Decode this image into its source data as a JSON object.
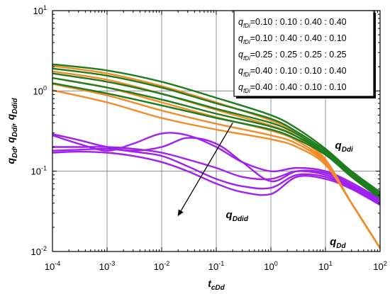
{
  "chart_data": {
    "type": "line",
    "title": "",
    "x_scale": "log",
    "y_scale": "log",
    "xlim": [
      0.0001,
      100
    ],
    "ylim": [
      0.01,
      10
    ],
    "grid": true,
    "xlabel": {
      "base": "t",
      "sub": "cDd"
    },
    "ylabel": [
      {
        "base": "q",
        "sub": "Dd",
        "sep": ", "
      },
      {
        "base": "q",
        "sub": "Ddi",
        "sep": ", "
      },
      {
        "base": "q",
        "sub": "Ddid",
        "sep": ""
      }
    ],
    "x_ticks": [
      {
        "base": "10",
        "exp": "-4"
      },
      {
        "base": "10",
        "exp": "-3"
      },
      {
        "base": "10",
        "exp": "-2"
      },
      {
        "base": "10",
        "exp": "-1"
      },
      {
        "base": "10",
        "exp": "0"
      },
      {
        "base": "10",
        "exp": "1"
      },
      {
        "base": "10",
        "exp": "2"
      }
    ],
    "y_ticks": [
      {
        "base": "10",
        "exp": "-2"
      },
      {
        "base": "10",
        "exp": "-1"
      },
      {
        "base": "10",
        "exp": "0"
      },
      {
        "base": "10",
        "exp": "1"
      }
    ],
    "legend": {
      "position": "top-right",
      "symbol": "q",
      "symbol_sub": "fDi",
      "entries": [
        "=0.10 : 0.10 : 0.40 : 0.40",
        "=0.10 : 0.40 : 0.40 : 0.10",
        "=0.25 : 0.25 : 0.25 : 0.25",
        "=0.40 : 0.10 : 0.10 : 0.40",
        "=0.40 : 0.40 : 0.10 : 0.10"
      ]
    },
    "annotations": [
      {
        "base": "q",
        "sub": "Ddi",
        "x": 15,
        "y": 0.19
      },
      {
        "base": "q",
        "sub": "Ddid",
        "x": 0.15,
        "y": 0.026
      },
      {
        "base": "q",
        "sub": "Dd",
        "x": 12,
        "y": 0.012
      }
    ],
    "arrow": {
      "from": [
        0.2,
        0.4
      ],
      "to": [
        0.02,
        0.028
      ]
    },
    "colors": {
      "qDd": "#f28c28",
      "qDdi": "#1e7d1e",
      "qDdid": "#a020f0"
    },
    "series": [
      {
        "group": "qDdi",
        "x": [
          0.0001,
          0.001,
          0.01,
          0.1,
          1,
          3,
          10,
          30,
          100
        ],
        "y": [
          2.15,
          1.8,
          1.3,
          0.82,
          0.5,
          0.34,
          0.19,
          0.1,
          0.055
        ]
      },
      {
        "group": "qDdi",
        "x": [
          0.0001,
          0.001,
          0.01,
          0.1,
          1,
          3,
          10,
          30,
          100
        ],
        "y": [
          1.9,
          1.55,
          1.1,
          0.7,
          0.45,
          0.31,
          0.18,
          0.095,
          0.052
        ]
      },
      {
        "group": "qDdi",
        "x": [
          0.0001,
          0.001,
          0.01,
          0.1,
          1,
          3,
          10,
          30,
          100
        ],
        "y": [
          1.65,
          1.3,
          0.92,
          0.6,
          0.4,
          0.29,
          0.17,
          0.09,
          0.05
        ]
      },
      {
        "group": "qDdi",
        "x": [
          0.0001,
          0.001,
          0.01,
          0.1,
          1,
          3,
          10,
          30,
          100
        ],
        "y": [
          1.45,
          1.1,
          0.78,
          0.52,
          0.36,
          0.27,
          0.165,
          0.088,
          0.048
        ]
      },
      {
        "group": "qDdi",
        "x": [
          0.0001,
          0.001,
          0.01,
          0.1,
          1,
          3,
          10,
          30,
          100
        ],
        "y": [
          1.25,
          0.93,
          0.66,
          0.46,
          0.33,
          0.25,
          0.16,
          0.085,
          0.046
        ]
      },
      {
        "group": "qDd",
        "x": [
          0.0001,
          0.001,
          0.01,
          0.1,
          1,
          3,
          10,
          30,
          100
        ],
        "y": [
          2.05,
          1.65,
          1.15,
          0.72,
          0.43,
          0.3,
          0.14,
          0.04,
          0.011
        ]
      },
      {
        "group": "qDd",
        "x": [
          0.0001,
          0.001,
          0.01,
          0.1,
          1,
          3,
          10,
          30,
          100
        ],
        "y": [
          1.75,
          1.38,
          0.92,
          0.58,
          0.37,
          0.27,
          0.135,
          0.04,
          0.011
        ]
      },
      {
        "group": "qDd",
        "x": [
          0.0001,
          0.001,
          0.01,
          0.1,
          1,
          3,
          10,
          30,
          100
        ],
        "y": [
          1.45,
          1.1,
          0.72,
          0.47,
          0.32,
          0.24,
          0.13,
          0.04,
          0.011
        ]
      },
      {
        "group": "qDd",
        "x": [
          0.0001,
          0.001,
          0.01,
          0.1,
          1,
          3,
          10,
          30,
          100
        ],
        "y": [
          1.22,
          0.88,
          0.57,
          0.39,
          0.28,
          0.22,
          0.125,
          0.04,
          0.011
        ]
      },
      {
        "group": "qDd",
        "x": [
          0.0001,
          0.001,
          0.01,
          0.1,
          1,
          3,
          10,
          30,
          100
        ],
        "y": [
          1.02,
          0.72,
          0.46,
          0.33,
          0.25,
          0.2,
          0.12,
          0.04,
          0.011
        ]
      },
      {
        "group": "qDdid",
        "x": [
          0.0001,
          0.0003,
          0.001,
          0.003,
          0.01,
          0.03,
          0.1,
          0.3,
          1,
          3,
          10,
          30,
          100
        ],
        "y": [
          0.28,
          0.22,
          0.18,
          0.22,
          0.295,
          0.28,
          0.2,
          0.13,
          0.1,
          0.11,
          0.1,
          0.072,
          0.045
        ]
      },
      {
        "group": "qDdid",
        "x": [
          0.0001,
          0.0003,
          0.001,
          0.003,
          0.01,
          0.03,
          0.1,
          0.3,
          1,
          3,
          10,
          30,
          100
        ],
        "y": [
          0.29,
          0.245,
          0.2,
          0.18,
          0.2,
          0.26,
          0.22,
          0.13,
          0.075,
          0.1,
          0.095,
          0.068,
          0.043
        ]
      },
      {
        "group": "qDdid",
        "x": [
          0.0001,
          0.0003,
          0.001,
          0.003,
          0.01,
          0.03,
          0.1,
          0.3,
          1,
          3,
          10,
          30,
          100
        ],
        "y": [
          0.2,
          0.2,
          0.2,
          0.19,
          0.17,
          0.14,
          0.11,
          0.085,
          0.08,
          0.1,
          0.09,
          0.065,
          0.041
        ]
      },
      {
        "group": "qDdid",
        "x": [
          0.0001,
          0.0003,
          0.001,
          0.003,
          0.01,
          0.03,
          0.1,
          0.3,
          1,
          3,
          10,
          30,
          100
        ],
        "y": [
          0.18,
          0.185,
          0.19,
          0.175,
          0.155,
          0.115,
          0.08,
          0.065,
          0.062,
          0.09,
          0.085,
          0.062,
          0.04
        ]
      },
      {
        "group": "qDdid",
        "x": [
          0.0001,
          0.0003,
          0.001,
          0.003,
          0.01,
          0.03,
          0.1,
          0.3,
          1,
          3,
          10,
          30,
          100
        ],
        "y": [
          0.17,
          0.175,
          0.17,
          0.155,
          0.13,
          0.1,
          0.07,
          0.055,
          0.052,
          0.085,
          0.08,
          0.06,
          0.038
        ]
      }
    ]
  }
}
